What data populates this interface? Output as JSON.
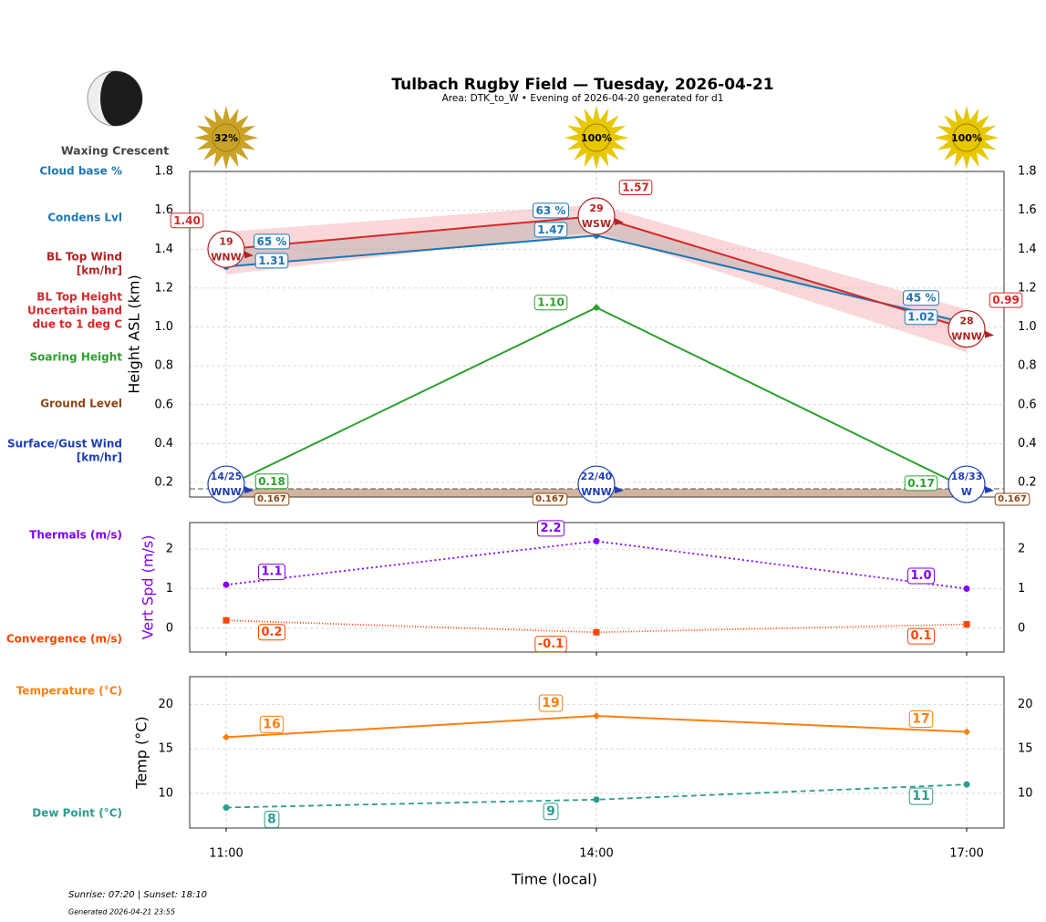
{
  "page": {
    "title": "Tulbach Rugby Field — Tuesday, 2026-04-21",
    "subtitle": "Area: DTK_to_W • Evening of 2026-04-20 generated for d1",
    "moon": "Waxing Crescent",
    "sun": {
      "values": [
        32,
        100,
        100
      ],
      "value_labels": [
        "32%",
        "100%",
        "100%"
      ],
      "colors": [
        "#c9a227",
        "#e6c700",
        "#e6c700"
      ]
    },
    "x_label": "Time (local)",
    "footer": [
      "Sunrise: 07:20 | Sunset: 18:10",
      "Generated 2026-04-21 23:55"
    ]
  },
  "chart_data": [
    {
      "type": "line",
      "ylabel": "Height ASL (km)",
      "ylabel_color": "#000000",
      "categories": [
        "11:00",
        "14:00",
        "17:00"
      ],
      "ylim": [
        0.125,
        1.8
      ],
      "yticks": [
        0.2,
        0.4,
        0.6,
        0.8,
        {
          "value": 1,
          "label": "1.0"
        },
        1.2,
        1.4,
        1.6,
        1.8
      ],
      "grid": true,
      "legend": [
        {
          "lines": [
            "Cloud base %"
          ],
          "color": "#1f77b4"
        },
        {
          "lines": [
            "Condens Lvl"
          ],
          "color": "#1f77b4"
        },
        {
          "lines": [
            "BL Top Wind",
            "[km/hr]"
          ],
          "color": "#b22222"
        },
        {
          "lines": [
            "BL Top Height",
            "Uncertain band",
            "due to 1 deg C"
          ],
          "color": "#d62728"
        },
        {
          "lines": [
            "Soaring Height"
          ],
          "color": "#2ca02c"
        },
        {
          "lines": [
            "Ground Level"
          ],
          "color": "#8b4513"
        },
        {
          "lines": [
            "Surface/Gust Wind",
            "[km/hr]"
          ],
          "color": "#1f3fb4"
        }
      ],
      "bl_top": {
        "color": "#d62728",
        "values": [
          1.4,
          1.57,
          0.99
        ],
        "value_labels": [
          "1.40",
          "1.57",
          "0.99"
        ],
        "band_low": [
          1.27,
          1.49,
          0.87
        ],
        "band_high": [
          1.49,
          1.63,
          1.09
        ],
        "band_color": "#f4a6a8"
      },
      "condens": {
        "color": "#1f77b4",
        "fill_color": "#9e9e9e",
        "values": [
          1.31,
          1.47,
          1.02
        ],
        "cloud_base": [
          65,
          63,
          45
        ],
        "cloud_base_labels": [
          "65 %",
          "63 %",
          "45 %"
        ]
      },
      "soaring": {
        "color": "#2ca02c",
        "values": [
          0.18,
          1.1,
          0.17
        ],
        "value_labels": [
          "0.18",
          "1.10",
          "0.17"
        ]
      },
      "ground": {
        "color": "#8b4513",
        "values": [
          0.167,
          0.167,
          0.167
        ]
      },
      "bl_wind": {
        "color": "#b22222",
        "speed": [
          19,
          29,
          28
        ],
        "directions": [
          "WNW",
          "WSW",
          "WNW"
        ]
      },
      "surface_wind": {
        "color": "#1f3fb4",
        "speed": [
          14,
          22,
          18
        ],
        "gust": [
          25,
          40,
          33
        ],
        "value_labels": [
          "14/25",
          "22/40",
          "18/33"
        ],
        "directions": [
          "WNW",
          "WNW",
          "W"
        ]
      }
    },
    {
      "type": "line",
      "ylabel": "Vert Spd (m/s)",
      "ylabel_color": "#7f00ff",
      "categories": [
        "11:00",
        "14:00",
        "17:00"
      ],
      "ylim": [
        -0.6,
        2.67
      ],
      "yticks": [
        0,
        1,
        2
      ],
      "grid": true,
      "legend": [
        {
          "lines": [
            "Thermals (m/s)"
          ],
          "color": "#7f00ff"
        },
        {
          "lines": [
            "Convergence (m/s)"
          ],
          "color": "#ff4500"
        }
      ],
      "series": [
        {
          "color": "#7f00ff",
          "dash": "2,3",
          "marker": "circle",
          "values": [
            1.1,
            2.2,
            1.0
          ],
          "value_labels": [
            "1.1",
            "2.2",
            "1.0"
          ]
        },
        {
          "color": "#ff4500",
          "dash": "1,2",
          "marker": "square",
          "values": [
            0.2,
            -0.1,
            0.1
          ]
        }
      ]
    },
    {
      "type": "line",
      "ylabel": "Temp (°C)",
      "ylabel_color": "#000000",
      "categories": [
        "11:00",
        "14:00",
        "17:00"
      ],
      "ylim": [
        6.1,
        23.1
      ],
      "yticks": [
        10,
        15,
        20
      ],
      "grid": true,
      "legend": [
        {
          "lines": [
            "Temperature (°C)"
          ],
          "color": "#ff7f0e"
        },
        {
          "lines": [
            "Dew Point (°C)"
          ],
          "color": "#2a9d8f"
        }
      ],
      "series": [
        {
          "color": "#ff7f0e",
          "dash": "",
          "marker": "diamond",
          "values": [
            16.3,
            18.7,
            16.9
          ],
          "value_labels": [
            "16",
            "19",
            "17"
          ]
        },
        {
          "color": "#2a9d8f",
          "dash": "6,4",
          "marker": "circle",
          "values": [
            8.4,
            9.3,
            11.0
          ],
          "value_labels": [
            "8",
            "9",
            "11"
          ]
        }
      ]
    }
  ]
}
